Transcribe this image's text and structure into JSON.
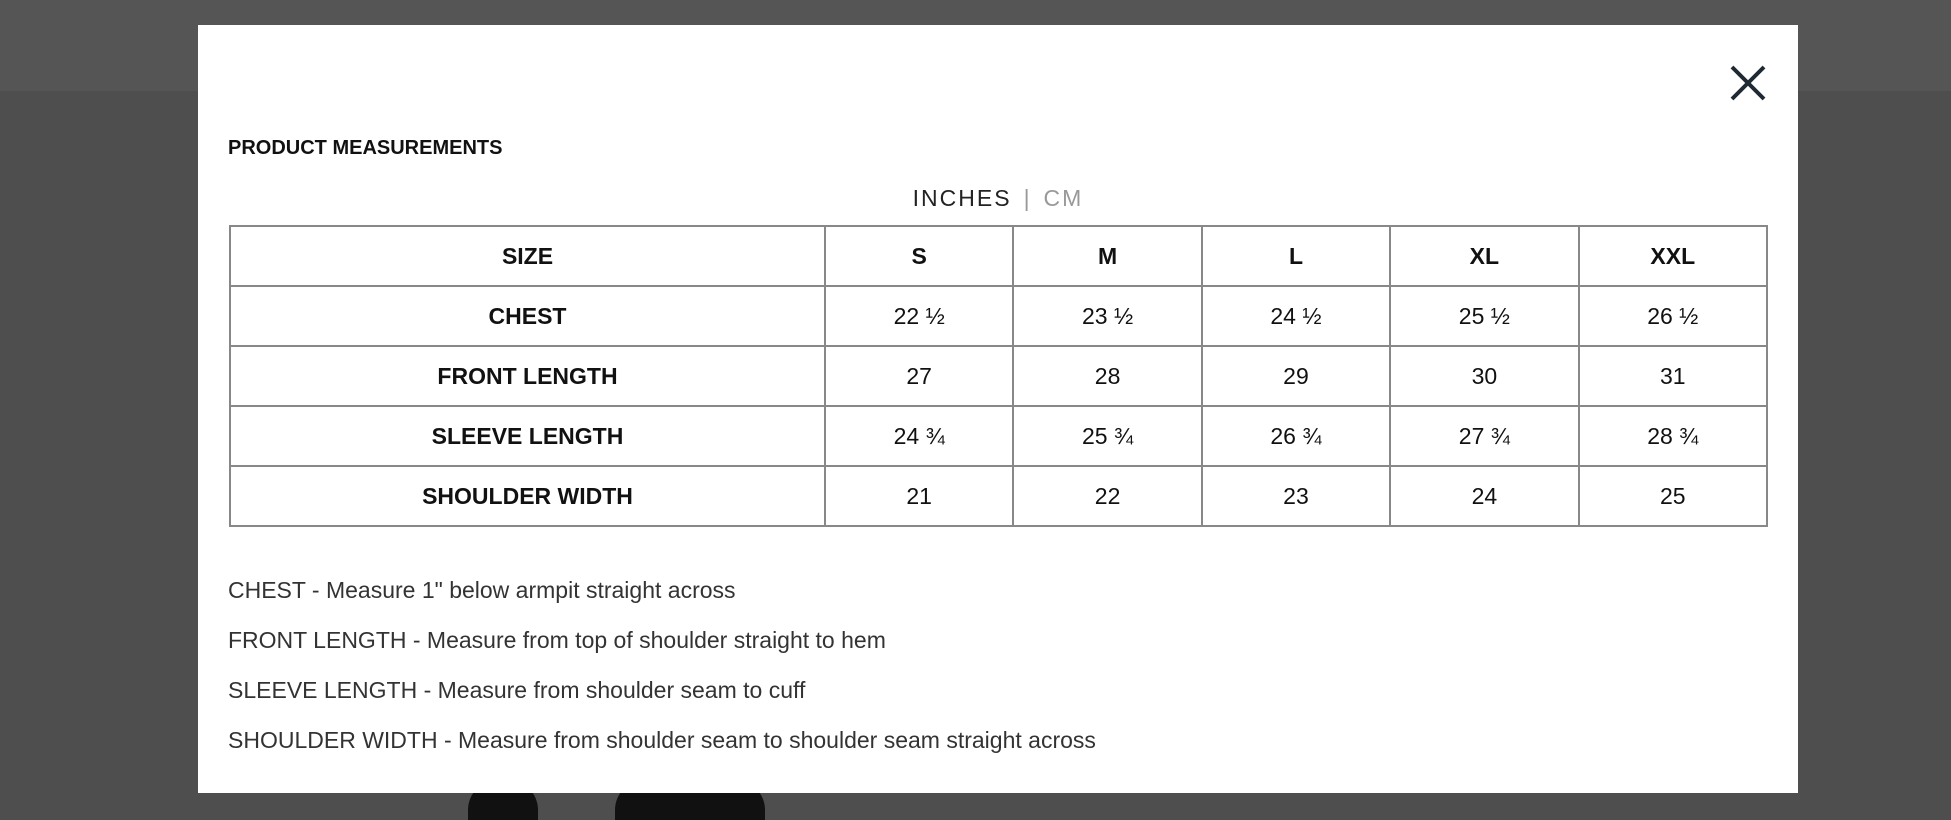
{
  "header": {
    "title": "PRODUCT MEASUREMENTS"
  },
  "units": {
    "selected": "INCHES",
    "separator": "|",
    "other": "CM"
  },
  "table": {
    "header": [
      "SIZE",
      "S",
      "M",
      "L",
      "XL",
      "XXL"
    ],
    "rows": [
      [
        "CHEST",
        "22 ½",
        "23 ½",
        "24 ½",
        "25 ½",
        "26 ½"
      ],
      [
        "FRONT LENGTH",
        "27",
        "28",
        "29",
        "30",
        "31"
      ],
      [
        "SLEEVE LENGTH",
        "24 ¾",
        "25 ¾",
        "26 ¾",
        "27 ¾",
        "28 ¾"
      ],
      [
        "SHOULDER WIDTH",
        "21",
        "22",
        "23",
        "24",
        "25"
      ]
    ]
  },
  "notes": [
    "CHEST - Measure 1\" below armpit straight across",
    "FRONT LENGTH - Measure from top of shoulder straight to hem",
    "SLEEVE LENGTH - Measure from shoulder seam to cuff",
    "SHOULDER WIDTH - Measure from shoulder seam to shoulder seam straight across"
  ]
}
